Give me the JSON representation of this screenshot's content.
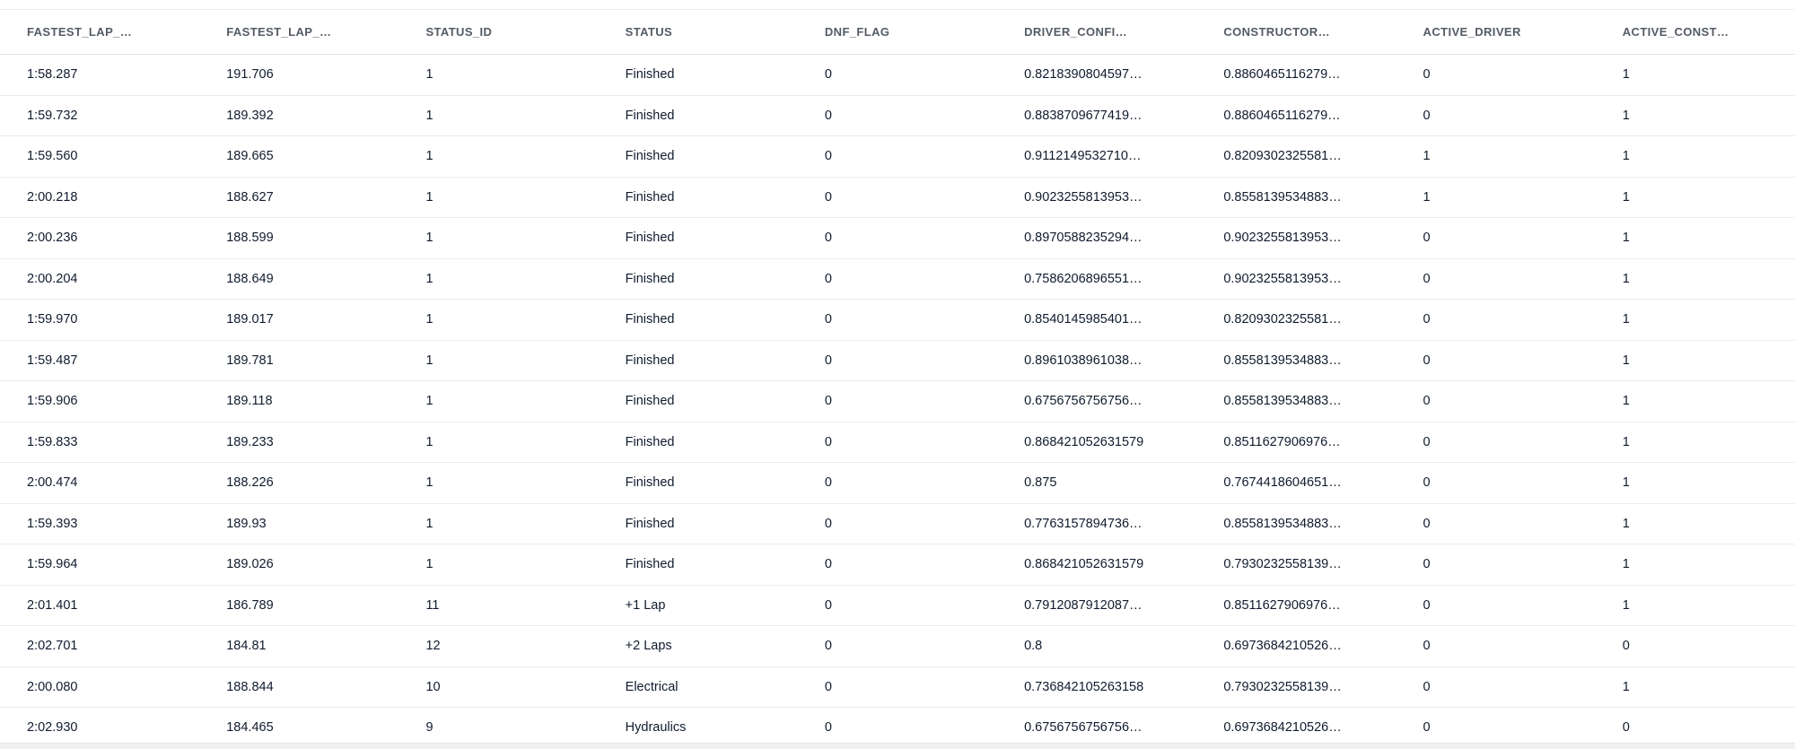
{
  "table": {
    "columns": [
      {
        "id": "fastest-lap-a",
        "label": "FASTEST_LAP_…"
      },
      {
        "id": "fastest-lap-b",
        "label": "FASTEST_LAP_…"
      },
      {
        "id": "status-id",
        "label": "STATUS_ID"
      },
      {
        "id": "status",
        "label": "STATUS"
      },
      {
        "id": "dnf-flag",
        "label": "DNF_FLAG"
      },
      {
        "id": "driver-confi",
        "label": "DRIVER_CONFI…"
      },
      {
        "id": "constructor",
        "label": "CONSTRUCTOR…"
      },
      {
        "id": "active-driver",
        "label": "ACTIVE_DRIVER"
      },
      {
        "id": "active-const",
        "label": "ACTIVE_CONST…"
      }
    ],
    "rows": [
      [
        "1:58.287",
        "191.706",
        "1",
        "Finished",
        "0",
        "0.8218390804597…",
        "0.8860465116279…",
        "0",
        "1"
      ],
      [
        "1:59.732",
        "189.392",
        "1",
        "Finished",
        "0",
        "0.8838709677419…",
        "0.8860465116279…",
        "0",
        "1"
      ],
      [
        "1:59.560",
        "189.665",
        "1",
        "Finished",
        "0",
        "0.9112149532710…",
        "0.8209302325581…",
        "1",
        "1"
      ],
      [
        "2:00.218",
        "188.627",
        "1",
        "Finished",
        "0",
        "0.9023255813953…",
        "0.8558139534883…",
        "1",
        "1"
      ],
      [
        "2:00.236",
        "188.599",
        "1",
        "Finished",
        "0",
        "0.8970588235294…",
        "0.9023255813953…",
        "0",
        "1"
      ],
      [
        "2:00.204",
        "188.649",
        "1",
        "Finished",
        "0",
        "0.7586206896551…",
        "0.9023255813953…",
        "0",
        "1"
      ],
      [
        "1:59.970",
        "189.017",
        "1",
        "Finished",
        "0",
        "0.8540145985401…",
        "0.8209302325581…",
        "0",
        "1"
      ],
      [
        "1:59.487",
        "189.781",
        "1",
        "Finished",
        "0",
        "0.8961038961038…",
        "0.8558139534883…",
        "0",
        "1"
      ],
      [
        "1:59.906",
        "189.118",
        "1",
        "Finished",
        "0",
        "0.6756756756756…",
        "0.8558139534883…",
        "0",
        "1"
      ],
      [
        "1:59.833",
        "189.233",
        "1",
        "Finished",
        "0",
        "0.868421052631579",
        "0.8511627906976…",
        "0",
        "1"
      ],
      [
        "2:00.474",
        "188.226",
        "1",
        "Finished",
        "0",
        "0.875",
        "0.7674418604651…",
        "0",
        "1"
      ],
      [
        "1:59.393",
        "189.93",
        "1",
        "Finished",
        "0",
        "0.7763157894736…",
        "0.8558139534883…",
        "0",
        "1"
      ],
      [
        "1:59.964",
        "189.026",
        "1",
        "Finished",
        "0",
        "0.868421052631579",
        "0.7930232558139…",
        "0",
        "1"
      ],
      [
        "2:01.401",
        "186.789",
        "11",
        "+1 Lap",
        "0",
        "0.7912087912087…",
        "0.8511627906976…",
        "0",
        "1"
      ],
      [
        "2:02.701",
        "184.81",
        "12",
        "+2 Laps",
        "0",
        "0.8",
        "0.6973684210526…",
        "0",
        "0"
      ],
      [
        "2:00.080",
        "188.844",
        "10",
        "Electrical",
        "0",
        "0.736842105263158",
        "0.7930232558139…",
        "0",
        "1"
      ],
      [
        "2:02.930",
        "184.465",
        "9",
        "Hydraulics",
        "0",
        "0.6756756756756…",
        "0.6973684210526…",
        "0",
        "0"
      ]
    ]
  },
  "colors": {
    "header_text": "#545b64",
    "cell_text": "#101b2d",
    "row_border": "#e9ebed",
    "header_border": "#dfe3e7",
    "scrollbar_track": "#f1f1f1"
  }
}
